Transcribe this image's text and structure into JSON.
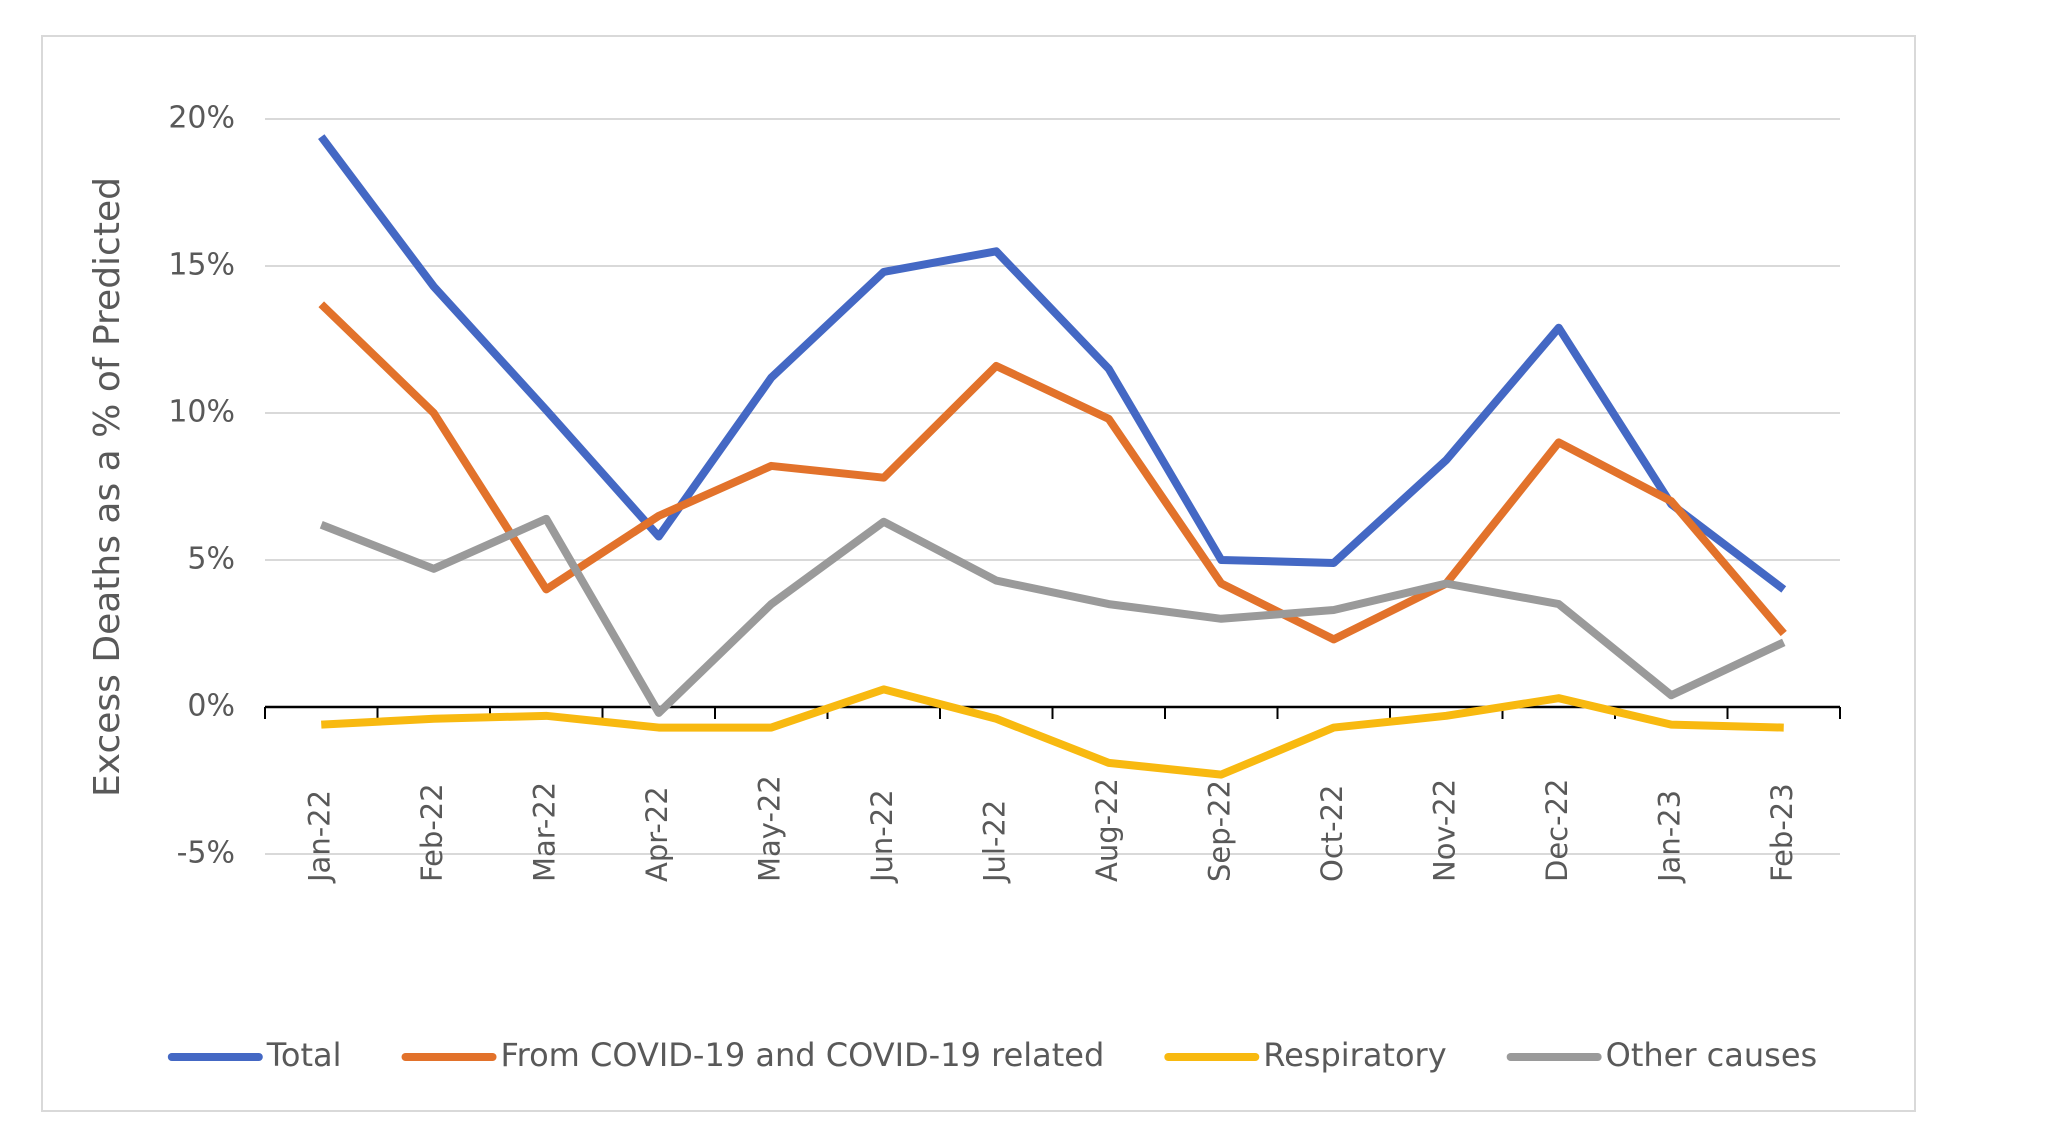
{
  "chart_data": {
    "type": "line",
    "y_label": "Excess Deaths as a % of Predicted",
    "categories": [
      "Jan-22",
      "Feb-22",
      "Mar-22",
      "Apr-22",
      "May-22",
      "Jun-22",
      "Jul-22",
      "Aug-22",
      "Sep-22",
      "Oct-22",
      "Nov-22",
      "Dec-22",
      "Jan-23",
      "Feb-23"
    ],
    "series": [
      {
        "name": "Total",
        "color": "#4468c4",
        "values": [
          19.4,
          14.3,
          10.1,
          5.8,
          11.2,
          14.8,
          15.5,
          11.5,
          5.0,
          4.9,
          8.4,
          12.9,
          6.9,
          4.0
        ]
      },
      {
        "name": "From COVID-19 and COVID-19 related",
        "color": "#e2722b",
        "values": [
          13.7,
          10.0,
          4.0,
          6.5,
          8.2,
          7.8,
          11.6,
          9.8,
          4.2,
          2.3,
          4.2,
          9.0,
          7.0,
          2.5
        ]
      },
      {
        "name": "Respiratory",
        "color": "#f8b910",
        "values": [
          -0.6,
          -0.4,
          -0.3,
          -0.7,
          -0.7,
          0.6,
          -0.4,
          -1.9,
          -2.3,
          -0.7,
          -0.3,
          0.3,
          -0.6,
          -0.7
        ]
      },
      {
        "name": "Other causes",
        "color": "#9a9a9a",
        "values": [
          6.2,
          4.7,
          6.4,
          -0.2,
          3.5,
          6.3,
          4.3,
          3.5,
          3.0,
          3.3,
          4.2,
          3.5,
          0.4,
          2.2
        ]
      }
    ],
    "ylim": [
      -5,
      20
    ],
    "yticks": [
      {
        "value": -5,
        "label": "-5%"
      },
      {
        "value": 0,
        "label": "0%"
      },
      {
        "value": 5,
        "label": "5%"
      },
      {
        "value": 10,
        "label": "10%"
      },
      {
        "value": 15,
        "label": "15%"
      },
      {
        "value": 20,
        "label": "20%"
      }
    ],
    "grid": true,
    "legend": "bottom"
  }
}
